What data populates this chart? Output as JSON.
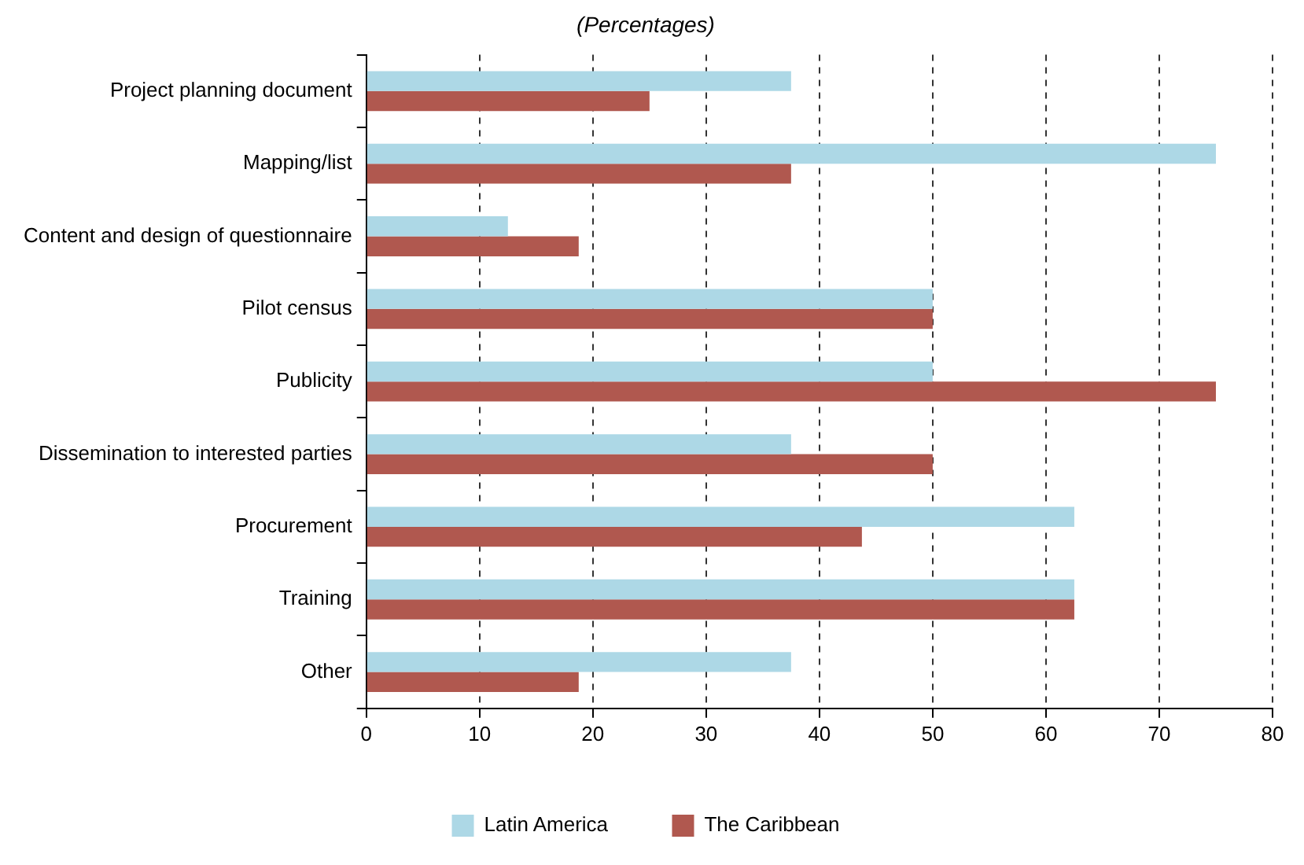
{
  "chart_data": {
    "type": "bar",
    "orientation": "horizontal",
    "subtitle": "(Percentages)",
    "categories": [
      "Project planning document",
      "Mapping/list",
      "Content and design of questionnaire",
      "Pilot census",
      "Publicity",
      "Dissemination to interested parties",
      "Procurement",
      "Training",
      "Other"
    ],
    "series": [
      {
        "name": "Latin America",
        "color": "#add8e6",
        "values": [
          37.5,
          75,
          12.5,
          50,
          50,
          37.5,
          62.5,
          62.5,
          37.5
        ]
      },
      {
        "name": "The Caribbean",
        "color": "#b0584f",
        "values": [
          25,
          37.5,
          18.75,
          50,
          75,
          50,
          43.75,
          62.5,
          18.75
        ]
      }
    ],
    "xlim": [
      0,
      80
    ],
    "xticks": [
      0,
      10,
      20,
      30,
      40,
      50,
      60,
      70,
      80
    ],
    "grid": "x",
    "legend": "bottom"
  }
}
